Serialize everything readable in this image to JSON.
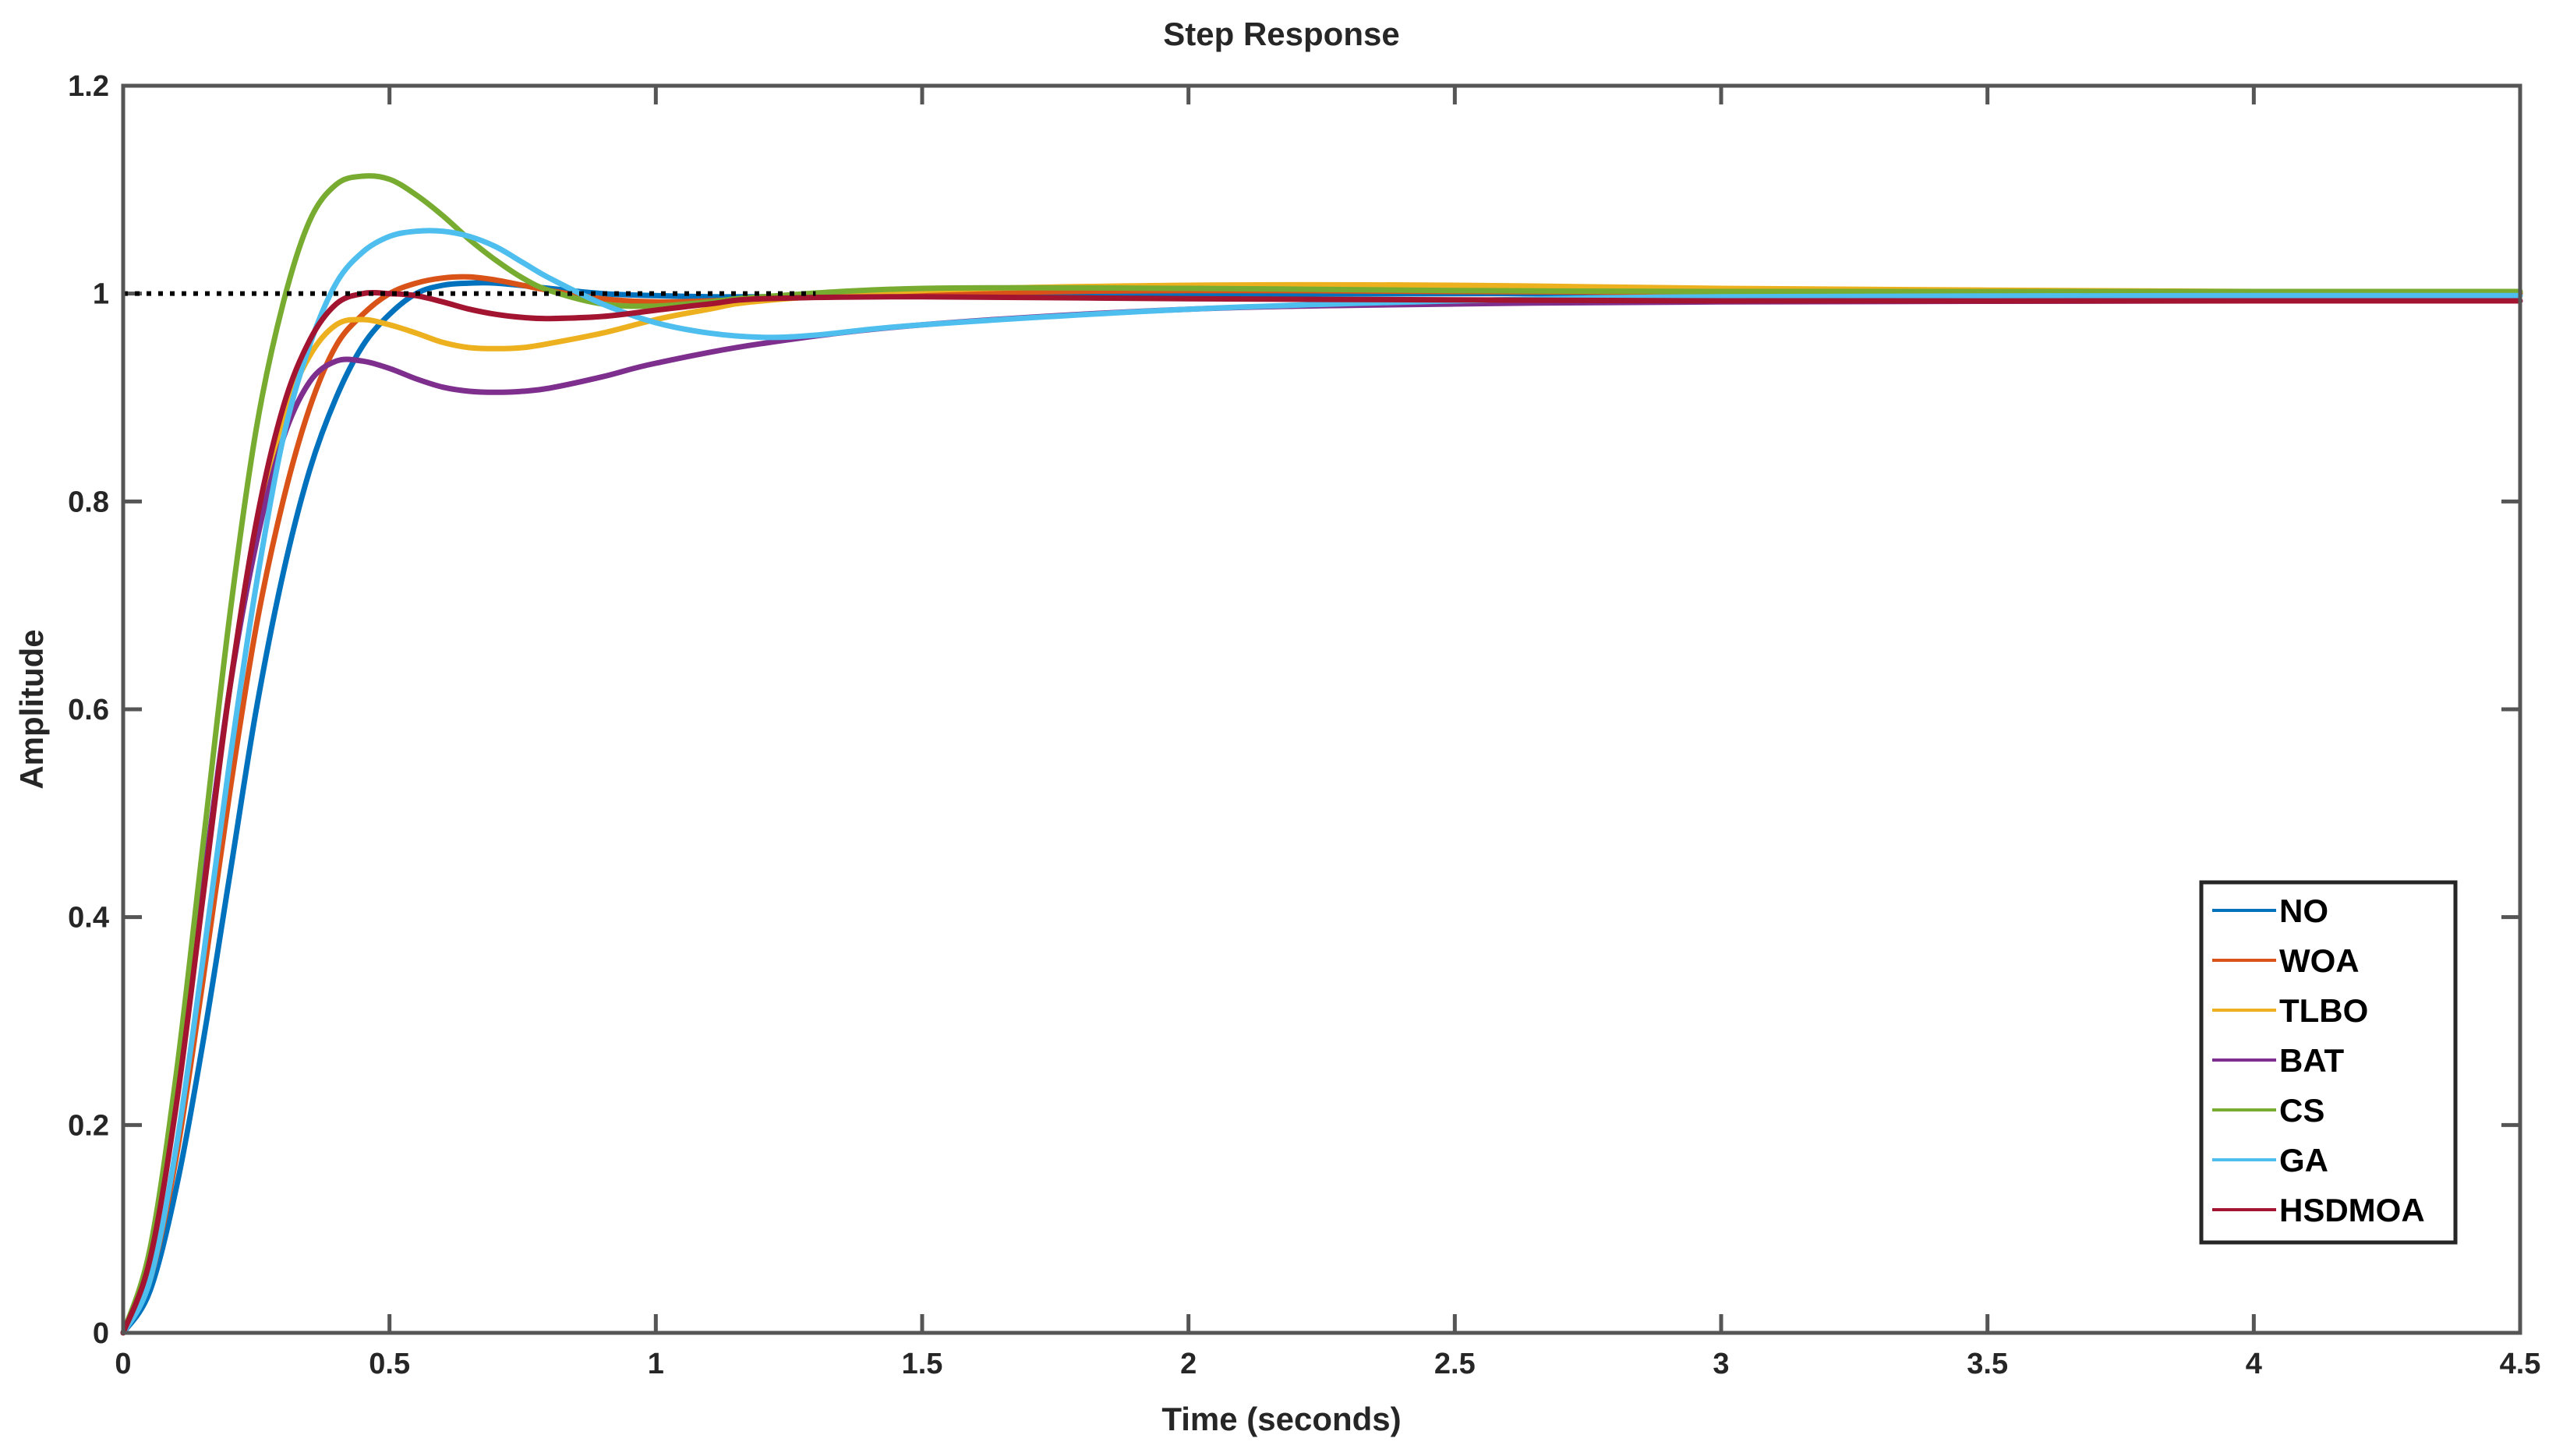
{
  "chart_data": {
    "type": "line",
    "title": "Step Response",
    "xlabel": "Time (seconds)",
    "ylabel": "Amplitude",
    "xlim": [
      0,
      4.5
    ],
    "ylim": [
      0,
      1.2
    ],
    "xticks": [
      "0",
      "0.5",
      "1",
      "1.5",
      "2",
      "2.5",
      "3",
      "3.5",
      "4",
      "4.5"
    ],
    "yticks": [
      "0",
      "0.2",
      "0.4",
      "0.6",
      "0.8",
      "1",
      "1.2"
    ],
    "grid": false,
    "legend_position": "bottom-right",
    "reference_line": {
      "y": 1,
      "style": "dotted",
      "color": "#000000",
      "x_range": [
        0,
        1.3
      ]
    },
    "series": [
      {
        "name": "NO",
        "color": "#0072BD",
        "x": [
          0,
          0.05,
          0.1,
          0.15,
          0.2,
          0.25,
          0.3,
          0.35,
          0.4,
          0.45,
          0.5,
          0.55,
          0.6,
          0.65,
          0.7,
          0.8,
          0.9,
          1.0,
          1.1,
          1.2,
          1.5,
          2.0,
          2.5,
          3.0,
          4.0,
          4.5
        ],
        "y": [
          0,
          0.04,
          0.14,
          0.28,
          0.44,
          0.6,
          0.73,
          0.83,
          0.9,
          0.95,
          0.98,
          1.0,
          1.008,
          1.01,
          1.01,
          1.005,
          1.0,
          0.998,
          0.997,
          0.997,
          0.998,
          0.999,
          1.0,
          1.0,
          1.0,
          1.0
        ]
      },
      {
        "name": "WOA",
        "color": "#D95319",
        "x": [
          0,
          0.05,
          0.1,
          0.15,
          0.2,
          0.25,
          0.3,
          0.35,
          0.4,
          0.45,
          0.5,
          0.55,
          0.6,
          0.65,
          0.7,
          0.75,
          0.8,
          0.9,
          1.0,
          1.1,
          1.2,
          1.5,
          2.0,
          2.5,
          3.0,
          4.0,
          4.5
        ],
        "y": [
          0,
          0.05,
          0.17,
          0.34,
          0.52,
          0.68,
          0.8,
          0.89,
          0.95,
          0.98,
          1.0,
          1.01,
          1.015,
          1.016,
          1.013,
          1.008,
          1.003,
          0.995,
          0.992,
          0.993,
          0.995,
          1.0,
          1.003,
          1.002,
          1.001,
          1.0,
          1.0
        ]
      },
      {
        "name": "TLBO",
        "color": "#EDB120",
        "x": [
          0,
          0.05,
          0.1,
          0.15,
          0.2,
          0.25,
          0.3,
          0.35,
          0.4,
          0.45,
          0.5,
          0.55,
          0.6,
          0.65,
          0.7,
          0.75,
          0.8,
          0.9,
          1.0,
          1.1,
          1.2,
          1.5,
          2.0,
          2.5,
          3.0,
          4.0,
          4.5
        ],
        "y": [
          0,
          0.07,
          0.23,
          0.43,
          0.62,
          0.77,
          0.88,
          0.94,
          0.97,
          0.975,
          0.97,
          0.962,
          0.953,
          0.948,
          0.947,
          0.948,
          0.952,
          0.962,
          0.975,
          0.985,
          0.993,
          1.003,
          1.008,
          1.008,
          1.005,
          1.002,
          1.002
        ]
      },
      {
        "name": "BAT",
        "color": "#7E2F8E",
        "x": [
          0,
          0.05,
          0.1,
          0.15,
          0.2,
          0.25,
          0.3,
          0.35,
          0.4,
          0.45,
          0.5,
          0.55,
          0.6,
          0.65,
          0.7,
          0.75,
          0.8,
          0.9,
          1.0,
          1.2,
          1.5,
          2.0,
          2.5,
          3.0,
          4.0,
          4.5
        ],
        "y": [
          0,
          0.07,
          0.23,
          0.43,
          0.62,
          0.76,
          0.86,
          0.915,
          0.935,
          0.935,
          0.928,
          0.918,
          0.91,
          0.906,
          0.905,
          0.906,
          0.909,
          0.92,
          0.933,
          0.952,
          0.97,
          0.985,
          0.99,
          0.992,
          0.993,
          0.993
        ]
      },
      {
        "name": "CS",
        "color": "#77AC30",
        "x": [
          0,
          0.05,
          0.1,
          0.15,
          0.2,
          0.25,
          0.3,
          0.35,
          0.4,
          0.45,
          0.5,
          0.55,
          0.6,
          0.65,
          0.7,
          0.75,
          0.8,
          0.9,
          1.0,
          1.1,
          1.2,
          1.5,
          2.0,
          2.5,
          3.0,
          4.0,
          4.5
        ],
        "y": [
          0,
          0.08,
          0.25,
          0.47,
          0.69,
          0.87,
          0.99,
          1.07,
          1.105,
          1.113,
          1.11,
          1.095,
          1.075,
          1.052,
          1.032,
          1.015,
          1.003,
          0.99,
          0.988,
          0.992,
          0.997,
          1.005,
          1.005,
          1.003,
          1.002,
          1.002,
          1.002
        ]
      },
      {
        "name": "GA",
        "color": "#4DBEEE",
        "x": [
          0,
          0.05,
          0.1,
          0.15,
          0.2,
          0.25,
          0.3,
          0.35,
          0.4,
          0.45,
          0.5,
          0.55,
          0.6,
          0.65,
          0.7,
          0.75,
          0.8,
          0.9,
          1.0,
          1.1,
          1.2,
          1.3,
          1.5,
          2.0,
          2.5,
          3.0,
          4.0,
          4.5
        ],
        "y": [
          0,
          0.05,
          0.18,
          0.36,
          0.55,
          0.72,
          0.86,
          0.95,
          1.01,
          1.04,
          1.055,
          1.06,
          1.06,
          1.055,
          1.045,
          1.03,
          1.015,
          0.99,
          0.972,
          0.962,
          0.958,
          0.96,
          0.97,
          0.985,
          0.993,
          0.997,
          0.998,
          0.998
        ]
      },
      {
        "name": "HSDMOA",
        "color": "#A2142F",
        "x": [
          0,
          0.05,
          0.1,
          0.15,
          0.2,
          0.25,
          0.3,
          0.35,
          0.4,
          0.45,
          0.5,
          0.55,
          0.6,
          0.65,
          0.7,
          0.75,
          0.8,
          0.9,
          1.0,
          1.1,
          1.2,
          1.5,
          2.0,
          2.5,
          3.0,
          4.0,
          4.5
        ],
        "y": [
          0,
          0.07,
          0.22,
          0.42,
          0.62,
          0.78,
          0.89,
          0.955,
          0.99,
          1.0,
          1.0,
          0.998,
          0.992,
          0.985,
          0.98,
          0.977,
          0.976,
          0.978,
          0.984,
          0.99,
          0.995,
          0.997,
          0.995,
          0.994,
          0.993,
          0.993,
          0.993
        ]
      }
    ]
  }
}
